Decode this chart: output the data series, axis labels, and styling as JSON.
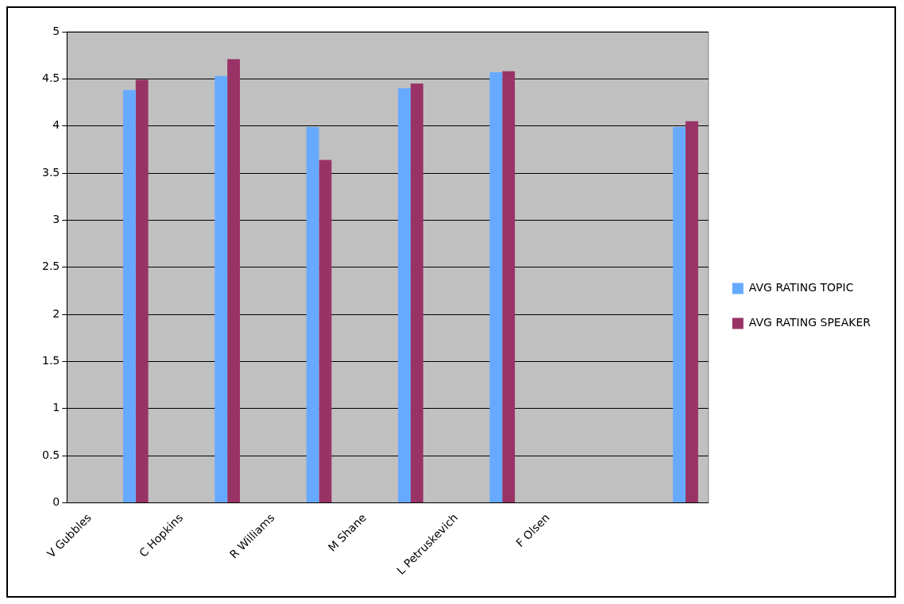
{
  "chart_data": {
    "type": "bar",
    "categories": [
      "V Gubbles",
      null,
      "C Hopkins",
      null,
      "R Williams",
      null,
      "M Shane",
      null,
      "L Petruskevich",
      null,
      "F Olsen",
      null,
      null,
      null
    ],
    "series": [
      {
        "name": "AVG RATING TOPIC",
        "color": "#66aaff",
        "values": [
          null,
          4.38,
          null,
          4.53,
          null,
          3.99,
          null,
          4.4,
          null,
          4.57,
          null,
          null,
          null,
          3.99
        ]
      },
      {
        "name": "AVG RATING SPEAKER",
        "color": "#993366",
        "values": [
          null,
          4.49,
          null,
          4.71,
          null,
          3.64,
          null,
          4.45,
          null,
          4.58,
          null,
          null,
          null,
          4.05
        ]
      }
    ],
    "ylim": [
      0,
      5
    ],
    "yticks": [
      0,
      0.5,
      1,
      1.5,
      2,
      2.5,
      3,
      3.5,
      4,
      4.5,
      5
    ],
    "grid": "y",
    "legend": "right"
  }
}
